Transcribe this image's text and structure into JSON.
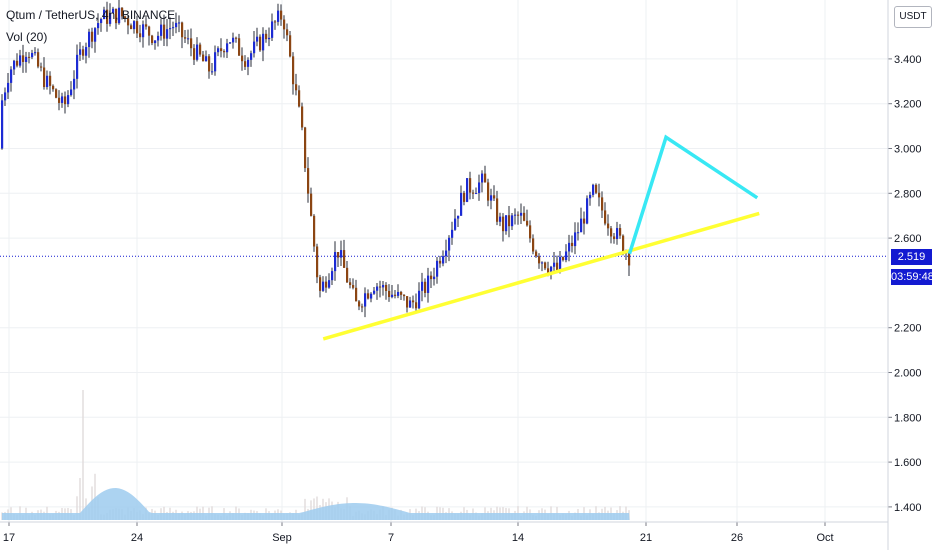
{
  "header": {
    "symbol_line": "Qtum / TetherUS, 4h, BINANCE",
    "volume_line": "Vol (20)"
  },
  "price_axis": {
    "currency": "USDT",
    "last_price": "2.519",
    "countdown": "03:59:48"
  },
  "colors": {
    "up": "#1c2bd4",
    "down": "#8b4513",
    "wick": "#2a2e39",
    "lower_trendline": "#ffff33",
    "projection_line": "#38e8f4",
    "volume_area": "#9ecbef",
    "volume_bars": "#e2dddd",
    "last_price_line": "#131ad1"
  },
  "chart_data": {
    "type": "candlestick",
    "title": "Qtum / TetherUS, 4h, BINANCE",
    "y_ticks": [
      "3.400",
      "3.200",
      "3.000",
      "2.800",
      "2.600",
      "2.200",
      "2.000",
      "1.800",
      "1.600",
      "1.400"
    ],
    "x_ticks": [
      "17",
      "24",
      "Sep",
      "7",
      "14",
      "21",
      "26",
      "Oct"
    ],
    "ylim": [
      1.35,
      3.62
    ],
    "grid": true,
    "last_price": 2.519,
    "annotations": {
      "lower_trendline": [
        {
          "date": "Sep 3",
          "price": 2.15
        },
        {
          "date": "Sep 27",
          "price": 2.71
        }
      ],
      "projection": [
        {
          "date": "Sep 20",
          "price": 2.53
        },
        {
          "date": "Sep 22",
          "price": 3.05
        },
        {
          "date": "Sep 27",
          "price": 2.78
        }
      ]
    },
    "price_path": [
      {
        "date": "Aug 16",
        "price": 3.0
      },
      {
        "date": "Aug 17",
        "price": 3.35
      },
      {
        "date": "Aug 18",
        "price": 3.45
      },
      {
        "date": "Aug 19",
        "price": 3.3
      },
      {
        "date": "Aug 20",
        "price": 3.18
      },
      {
        "date": "Aug 21",
        "price": 3.45
      },
      {
        "date": "Aug 22",
        "price": 3.58
      },
      {
        "date": "Aug 23",
        "price": 3.6
      },
      {
        "date": "Aug 24",
        "price": 3.55
      },
      {
        "date": "Aug 25",
        "price": 3.5
      },
      {
        "date": "Aug 26",
        "price": 3.55
      },
      {
        "date": "Aug 27",
        "price": 3.45
      },
      {
        "date": "Aug 28",
        "price": 3.35
      },
      {
        "date": "Aug 29",
        "price": 3.5
      },
      {
        "date": "Aug 30",
        "price": 3.4
      },
      {
        "date": "Aug 31",
        "price": 3.5
      },
      {
        "date": "Sep 1",
        "price": 3.6
      },
      {
        "date": "Sep 2",
        "price": 3.1
      },
      {
        "date": "Sep 3",
        "price": 2.35
      },
      {
        "date": "Sep 4",
        "price": 2.55
      },
      {
        "date": "Sep 5",
        "price": 2.3
      },
      {
        "date": "Sep 6",
        "price": 2.4
      },
      {
        "date": "Sep 7",
        "price": 2.35
      },
      {
        "date": "Sep 8",
        "price": 2.3
      },
      {
        "date": "Sep 9",
        "price": 2.4
      },
      {
        "date": "Sep 10",
        "price": 2.6
      },
      {
        "date": "Sep 11",
        "price": 2.82
      },
      {
        "date": "Sep 12",
        "price": 2.85
      },
      {
        "date": "Sep 13",
        "price": 2.65
      },
      {
        "date": "Sep 14",
        "price": 2.7
      },
      {
        "date": "Sep 15",
        "price": 2.52
      },
      {
        "date": "Sep 16",
        "price": 2.45
      },
      {
        "date": "Sep 17",
        "price": 2.6
      },
      {
        "date": "Sep 18",
        "price": 2.8
      },
      {
        "date": "Sep 19",
        "price": 2.65
      },
      {
        "date": "Sep 20",
        "price": 2.519
      }
    ]
  }
}
